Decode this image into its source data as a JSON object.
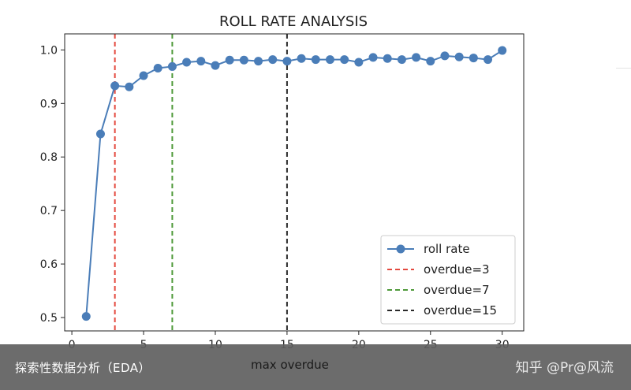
{
  "chart_data": {
    "type": "line",
    "title": "ROLL RATE ANALYSIS",
    "xlabel": "max overdue",
    "ylabel": "",
    "xlim": [
      -0.5,
      31.5
    ],
    "ylim": [
      0.475,
      1.03
    ],
    "xticks": [
      0,
      5,
      10,
      15,
      20,
      25,
      30
    ],
    "yticks": [
      0.5,
      0.6,
      0.7,
      0.8,
      0.9,
      1.0
    ],
    "ytick_labels": [
      "0.5",
      "0.6",
      "0.7",
      "0.8",
      "0.9",
      "1.0"
    ],
    "grid": false,
    "legend_position": "lower right",
    "series": [
      {
        "name": "roll rate",
        "color": "#4a7db8",
        "marker": "circle",
        "x": [
          1,
          2,
          3,
          4,
          5,
          6,
          7,
          8,
          9,
          10,
          11,
          12,
          13,
          14,
          15,
          16,
          17,
          18,
          19,
          20,
          21,
          22,
          23,
          24,
          25,
          26,
          27,
          28,
          29,
          30
        ],
        "y": [
          0.502,
          0.843,
          0.933,
          0.931,
          0.952,
          0.966,
          0.969,
          0.977,
          0.979,
          0.971,
          0.981,
          0.981,
          0.979,
          0.982,
          0.979,
          0.984,
          0.982,
          0.982,
          0.982,
          0.977,
          0.986,
          0.984,
          0.982,
          0.986,
          0.979,
          0.989,
          0.987,
          0.985,
          0.982,
          0.999
        ]
      }
    ],
    "vlines": [
      {
        "name": "overdue=3",
        "x": 3,
        "color": "#e4493f",
        "style": "dashed"
      },
      {
        "name": "overdue=7",
        "x": 7,
        "color": "#4f9a3a",
        "style": "dashed"
      },
      {
        "name": "overdue=15",
        "x": 15,
        "color": "#2a2a2a",
        "style": "dashed"
      }
    ]
  },
  "caption": {
    "text": "探索性数据分析（EDA）",
    "watermark": "知乎 @Pr@风流"
  }
}
